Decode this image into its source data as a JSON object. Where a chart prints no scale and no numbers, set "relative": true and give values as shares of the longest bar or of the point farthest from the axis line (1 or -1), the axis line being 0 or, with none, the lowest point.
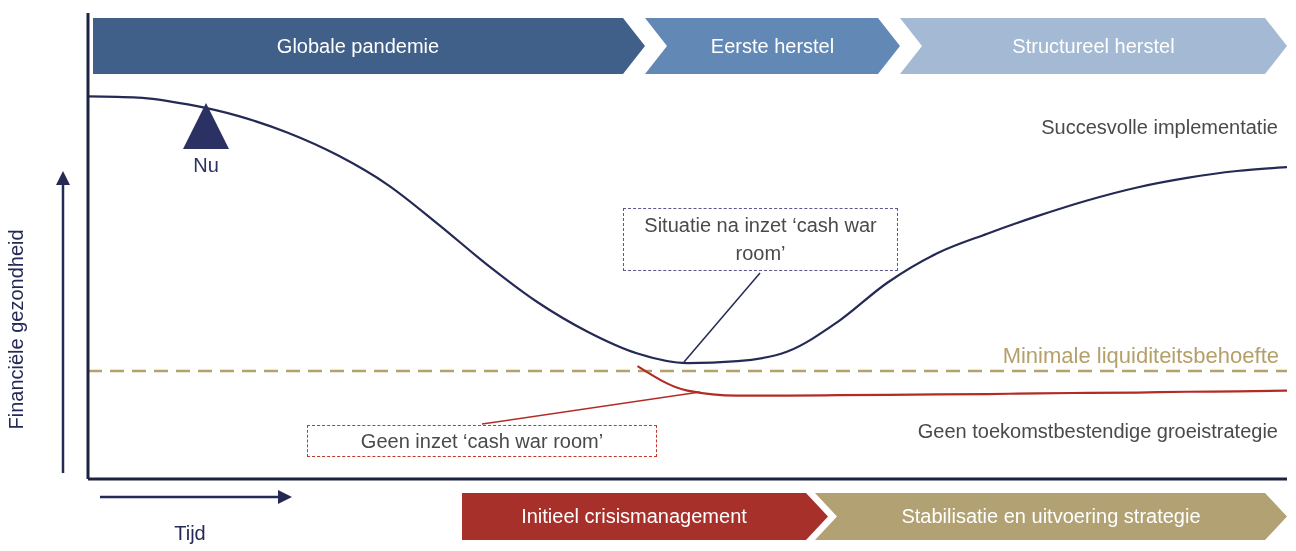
{
  "chart_data": {
    "type": "line",
    "relative": true,
    "marker": "none",
    "xlabel": "Tijd",
    "ylabel": "Financiële gezondheid",
    "categories": [
      null,
      null,
      null,
      null,
      null,
      null,
      null,
      null,
      null,
      null,
      null,
      null,
      null,
      null,
      null,
      null,
      null,
      null,
      null,
      null,
      null,
      null,
      null,
      null,
      null
    ],
    "series": [
      {
        "name": "Succesvolle implementatie",
        "color": "#252a55",
        "values": [
          1,
          0.997,
          0.979,
          0.949,
          0.905,
          0.846,
          0.769,
          0.667,
          0.559,
          0.462,
          0.385,
          0.328,
          0.303,
          0.308,
          0.333,
          0.41,
          0.513,
          0.59,
          0.641,
          0.687,
          0.728,
          0.762,
          0.787,
          0.805,
          0.815
        ]
      },
      {
        "name": "Geen toekomstbestendige groeistrategie",
        "color": "#b22c25",
        "values": [
          null,
          null,
          null,
          null,
          null,
          null,
          null,
          null,
          null,
          null,
          null,
          0.295,
          0.231,
          0.218,
          0.218,
          0.219,
          0.22,
          0.221,
          0.222,
          0.224,
          0.225,
          0.226,
          0.228,
          0.229,
          0.231
        ]
      }
    ],
    "ref_lines": [
      {
        "axis": "y",
        "value": 0.282,
        "label": "Minimale liquiditeitsbehoefte",
        "color": "#b5a06a",
        "line_style": "dashed"
      }
    ],
    "annotations": [
      "Globale pandemie",
      "Eerste herstel",
      "Structureel herstel",
      "Nu",
      "Situatie na inzet ‘cash war room’",
      "Geen inzet ‘cash war room’",
      "Initieel crisismanagement",
      "Stabilisatie en uitvoering strategie"
    ]
  }
}
